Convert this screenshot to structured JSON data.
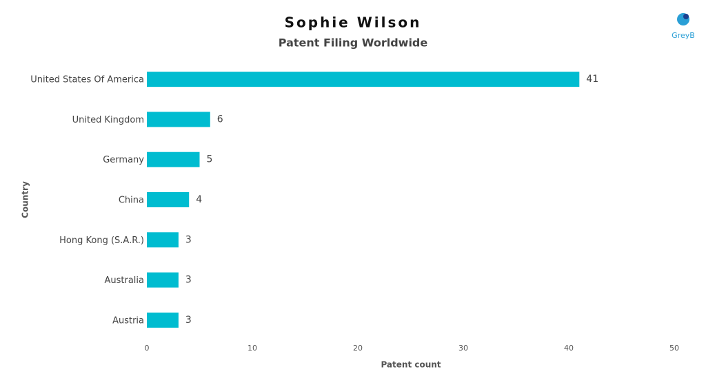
{
  "logo": "GreyB",
  "chart_data": {
    "type": "bar",
    "orientation": "horizontal",
    "title": "Sophie Wilson",
    "subtitle": "Patent Filing Worldwide",
    "x_label": "Patent count",
    "y_label": "Country",
    "categories": [
      "United States Of America",
      "United Kingdom",
      "Germany",
      "China",
      "Hong Kong (S.A.R.)",
      "Australia",
      "Austria"
    ],
    "values": [
      41,
      6,
      5,
      4,
      3,
      3,
      3
    ],
    "color": "#00bcd0",
    "xlim": [
      0,
      50
    ],
    "xticks": [
      0,
      10,
      20,
      30,
      40,
      50
    ],
    "grid": false
  }
}
